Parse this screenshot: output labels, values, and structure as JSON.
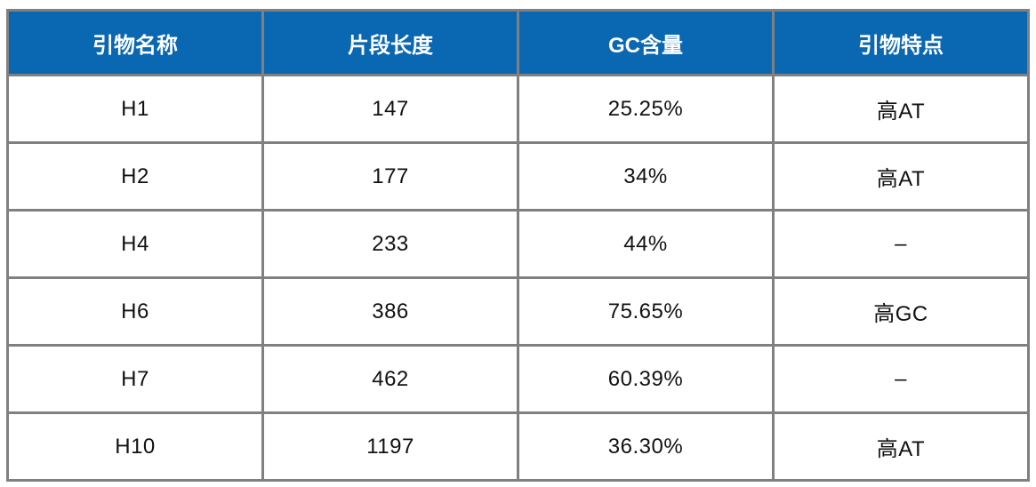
{
  "table": {
    "headers": [
      "引物名称",
      "片段长度",
      "GC含量",
      "引物特点"
    ],
    "rows": [
      [
        "H1",
        "147",
        "25.25%",
        "高AT"
      ],
      [
        "H2",
        "177",
        "34%",
        "高AT"
      ],
      [
        "H4",
        "233",
        "44%",
        "–"
      ],
      [
        "H6",
        "386",
        "75.65%",
        "高GC"
      ],
      [
        "H7",
        "462",
        "60.39%",
        "–"
      ],
      [
        "H10",
        "1197",
        "36.30%",
        "高AT"
      ]
    ],
    "colors": {
      "header_bg": "#0a67b2",
      "header_text": "#ffffff",
      "border": "#808080",
      "cell_text": "#111111",
      "row_bg": "#ffffff"
    }
  }
}
